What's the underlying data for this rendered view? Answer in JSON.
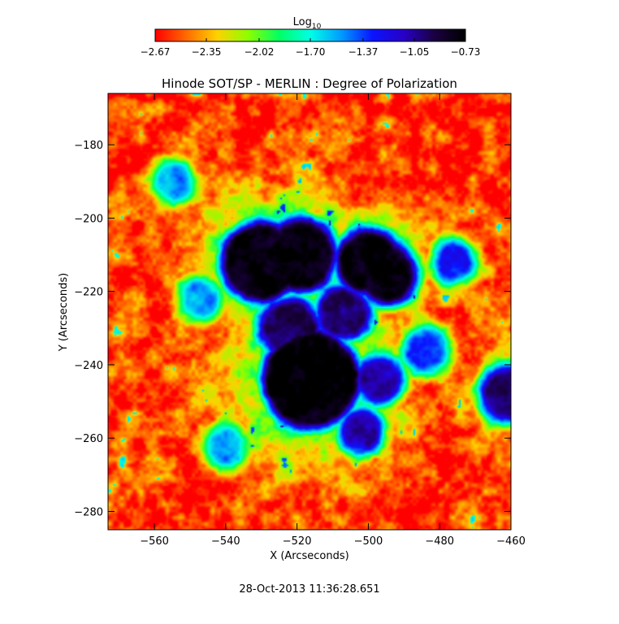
{
  "chart_data": {
    "type": "heatmap",
    "title": "Hinode SOT/SP - MERLIN : Degree of Polarization",
    "xlabel": "X (Arcseconds)",
    "ylabel": "Y (Arcseconds)",
    "xlim": [
      -573,
      -460
    ],
    "ylim": [
      -285,
      -166
    ],
    "x_ticks": [
      -560,
      -540,
      -520,
      -500,
      -480,
      -460
    ],
    "y_ticks": [
      -180,
      -200,
      -220,
      -240,
      -260,
      -280
    ],
    "x_tick_labels": [
      "−560",
      "−540",
      "−520",
      "−500",
      "−480",
      "−460"
    ],
    "y_tick_labels": [
      "−180",
      "−200",
      "−220",
      "−240",
      "−260",
      "−280"
    ],
    "colorbar": {
      "title_main": "Log",
      "title_sub": "10",
      "min": -2.67,
      "max": -0.73,
      "ticks": [
        -2.67,
        -2.35,
        -2.02,
        -1.7,
        -1.37,
        -1.05,
        -0.73
      ],
      "tick_labels": [
        "−2.67",
        "−2.35",
        "−2.02",
        "−1.70",
        "−1.37",
        "−1.05",
        "−0.73"
      ],
      "colormap": [
        "#ff0000",
        "#ff6a00",
        "#ffd200",
        "#8cff00",
        "#00ff64",
        "#00ffe6",
        "#009bff",
        "#0a14ff",
        "#2800c8",
        "#1a0040",
        "#000000"
      ]
    },
    "features": [
      {
        "x": -530,
        "y": -212,
        "r": 8.5,
        "v": -0.74
      },
      {
        "x": -519,
        "y": -210,
        "r": 7.5,
        "v": -0.76
      },
      {
        "x": -500,
        "y": -212,
        "r": 6.5,
        "v": -0.78
      },
      {
        "x": -495,
        "y": -215,
        "r": 6,
        "v": -0.8
      },
      {
        "x": -516,
        "y": -244,
        "r": 11,
        "v": -0.73
      },
      {
        "x": -522,
        "y": -230,
        "r": 6,
        "v": -0.95
      },
      {
        "x": -507,
        "y": -226,
        "r": 5,
        "v": -1.0
      },
      {
        "x": -497,
        "y": -244,
        "r": 4,
        "v": -1.05
      },
      {
        "x": -502,
        "y": -258,
        "r": 3.5,
        "v": -1.1
      },
      {
        "x": -461,
        "y": -248,
        "r": 5,
        "v": -1.0
      },
      {
        "x": -476,
        "y": -212,
        "r": 3,
        "v": -1.3
      },
      {
        "x": -555,
        "y": -190,
        "r": 3,
        "v": -1.5
      },
      {
        "x": -547,
        "y": -222,
        "r": 3,
        "v": -1.5
      },
      {
        "x": -540,
        "y": -262,
        "r": 3,
        "v": -1.5
      },
      {
        "x": -484,
        "y": -236,
        "r": 3.5,
        "v": -1.35
      }
    ]
  },
  "footer": {
    "timestamp": "28-Oct-2013 11:36:28.651"
  }
}
